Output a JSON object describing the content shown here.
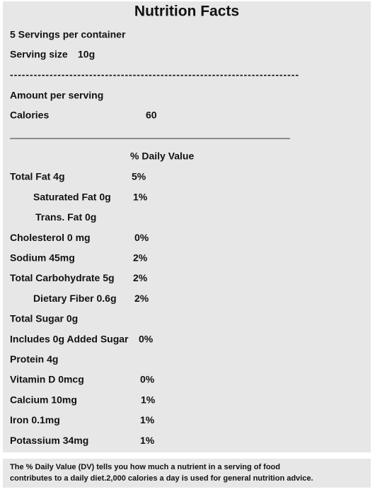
{
  "title": "Nutrition Facts",
  "servings": "5 Servings per container",
  "serving_size": {
    "label": "Serving size",
    "value": "10g"
  },
  "separator": "-------------------------------------------------------------------------",
  "amount_per_serving": "Amount per serving",
  "calories": {
    "label": "Calories",
    "value": "60"
  },
  "daily_value_header": "% Daily Value",
  "nutrients": [
    {
      "name": "Total Fat  4g",
      "dv": "5%"
    },
    {
      "name": "Saturated Fat 0g",
      "dv": "1%"
    },
    {
      "name": "Trans. Fat 0g"
    },
    {
      "name": "Cholesterol 0 mg",
      "dv": "0%"
    },
    {
      "name": "Sodium 45mg",
      "dv": "2%"
    },
    {
      "name": "Total Carbohydrate 5g",
      "dv": "2%"
    },
    {
      "name": "Dietary Fiber 0.6g",
      "dv": "2%"
    },
    {
      "name": "Total Sugar 0g"
    },
    {
      "name": "Includes 0g Added Sugar",
      "dv": "0%"
    },
    {
      "name": "Protein 4g"
    },
    {
      "name": "Vitamin D 0mcg",
      "dv": "0%"
    },
    {
      "name": "Calcium 10mg",
      "dv": "1%"
    },
    {
      "name": "Iron 0.1mg",
      "dv": "1%"
    },
    {
      "name": "Potassium 34mg",
      "dv": "1%"
    }
  ],
  "footer": [
    "The % Daily Value (DV) tells you how much a nutrient in a serving of food",
    "contributes to a daily diet.2,000 calories a day is used for general nutrition advice."
  ]
}
